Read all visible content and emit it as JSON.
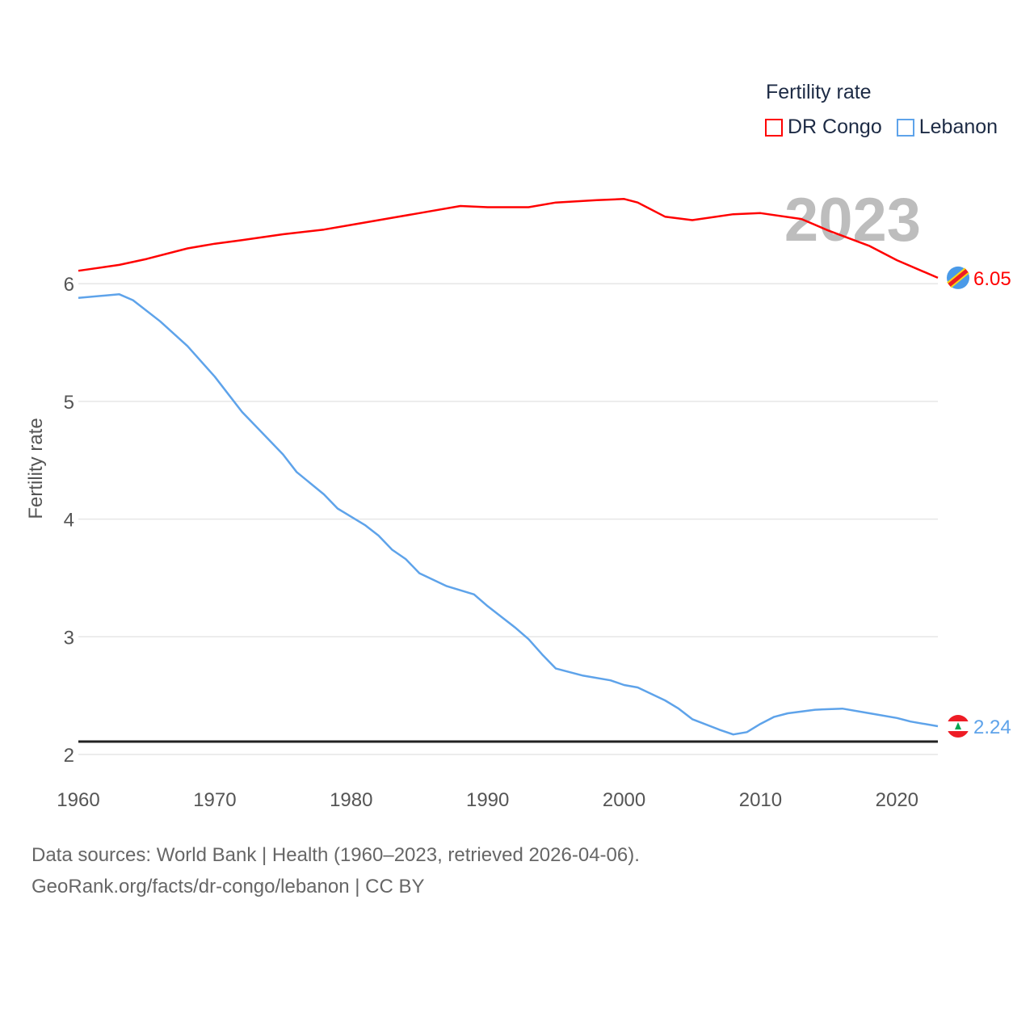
{
  "chart_data": {
    "type": "line",
    "title": "",
    "ylabel": "Fertility rate",
    "xlabel": "",
    "xlim": [
      1960,
      2023
    ],
    "ylim": [
      1.9,
      6.7
    ],
    "x_ticks": [
      "1960",
      "1970",
      "1980",
      "1990",
      "2000",
      "2010",
      "2020"
    ],
    "y_ticks": [
      "2",
      "3",
      "4",
      "5",
      "6"
    ],
    "grid": true,
    "year_label": "2023",
    "legend": {
      "title": "Fertility rate",
      "placement": "top-right"
    },
    "reference_line": 2.11,
    "series": [
      {
        "name": "DR Congo",
        "color": "#ff0000",
        "end_label": "6.05",
        "points": [
          [
            1960,
            6.11
          ],
          [
            1963,
            6.16
          ],
          [
            1965,
            6.21
          ],
          [
            1968,
            6.3
          ],
          [
            1970,
            6.34
          ],
          [
            1972,
            6.37
          ],
          [
            1975,
            6.42
          ],
          [
            1978,
            6.46
          ],
          [
            1980,
            6.5
          ],
          [
            1983,
            6.56
          ],
          [
            1985,
            6.6
          ],
          [
            1988,
            6.66
          ],
          [
            1990,
            6.65
          ],
          [
            1993,
            6.65
          ],
          [
            1995,
            6.69
          ],
          [
            1998,
            6.71
          ],
          [
            2000,
            6.72
          ],
          [
            2001,
            6.69
          ],
          [
            2003,
            6.57
          ],
          [
            2005,
            6.54
          ],
          [
            2008,
            6.59
          ],
          [
            2010,
            6.6
          ],
          [
            2013,
            6.55
          ],
          [
            2015,
            6.45
          ],
          [
            2018,
            6.32
          ],
          [
            2020,
            6.2
          ],
          [
            2023,
            6.05
          ]
        ]
      },
      {
        "name": "Lebanon",
        "color": "#5ea3ea",
        "end_label": "2.24",
        "points": [
          [
            1960,
            5.88
          ],
          [
            1963,
            5.91
          ],
          [
            1964,
            5.86
          ],
          [
            1966,
            5.68
          ],
          [
            1968,
            5.47
          ],
          [
            1970,
            5.21
          ],
          [
            1972,
            4.91
          ],
          [
            1973,
            4.79
          ],
          [
            1975,
            4.55
          ],
          [
            1976,
            4.4
          ],
          [
            1978,
            4.21
          ],
          [
            1979,
            4.09
          ],
          [
            1981,
            3.95
          ],
          [
            1982,
            3.86
          ],
          [
            1983,
            3.74
          ],
          [
            1984,
            3.66
          ],
          [
            1985,
            3.54
          ],
          [
            1987,
            3.43
          ],
          [
            1989,
            3.36
          ],
          [
            1990,
            3.26
          ],
          [
            1992,
            3.08
          ],
          [
            1993,
            2.98
          ],
          [
            1994,
            2.85
          ],
          [
            1995,
            2.73
          ],
          [
            1997,
            2.67
          ],
          [
            1999,
            2.63
          ],
          [
            2000,
            2.59
          ],
          [
            2001,
            2.57
          ],
          [
            2003,
            2.46
          ],
          [
            2004,
            2.39
          ],
          [
            2005,
            2.3
          ],
          [
            2007,
            2.21
          ],
          [
            2008,
            2.17
          ],
          [
            2009,
            2.19
          ],
          [
            2010,
            2.26
          ],
          [
            2011,
            2.32
          ],
          [
            2012,
            2.35
          ],
          [
            2014,
            2.38
          ],
          [
            2016,
            2.39
          ],
          [
            2018,
            2.35
          ],
          [
            2020,
            2.31
          ],
          [
            2021,
            2.28
          ],
          [
            2023,
            2.24
          ]
        ]
      }
    ]
  },
  "footer": {
    "line1": "Data sources: World Bank | Health (1960–2023, retrieved 2026-04-06).",
    "line2": "GeoRank.org/facts/dr-congo/lebanon | CC BY"
  }
}
